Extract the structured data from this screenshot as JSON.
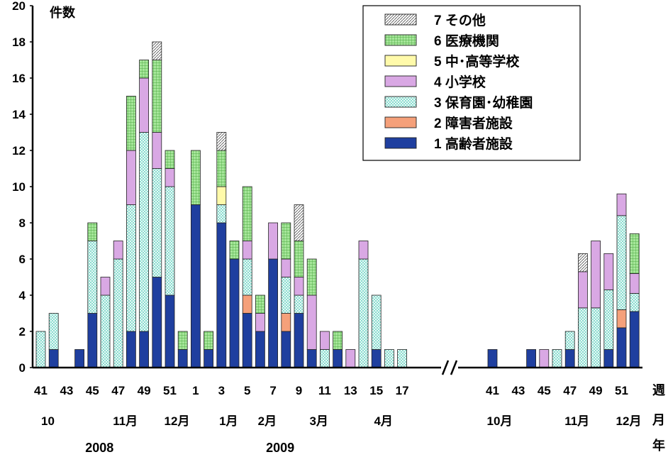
{
  "chart_data": {
    "type": "bar",
    "stacked": true,
    "ylabel": "件数",
    "ylim": [
      0,
      20
    ],
    "yticks": [
      0,
      2,
      4,
      6,
      8,
      10,
      12,
      14,
      16,
      18,
      20
    ],
    "x_unit_label": "週",
    "month_unit_label": "月",
    "year_unit_label": "年",
    "axis_break": true,
    "legend_position": "top-right",
    "grid": false,
    "series": [
      {
        "key": "s1",
        "name": "1 高齢者施設",
        "color": "#1f3f9f",
        "pattern": "solid"
      },
      {
        "key": "s2",
        "name": "2 障害者施設",
        "color": "#f5a07a",
        "pattern": "solid"
      },
      {
        "key": "s3",
        "name": "3 保育園･幼稚園",
        "color": "#72d6c6",
        "pattern": "crosshatch"
      },
      {
        "key": "s4",
        "name": "4 小学校",
        "color": "#d9a8e4",
        "pattern": "solid"
      },
      {
        "key": "s5",
        "name": "5 中･高等学校",
        "color": "#fffaaa",
        "pattern": "solid"
      },
      {
        "key": "s6",
        "name": "6 医療機関",
        "color": "#a6e69a",
        "pattern": "grid"
      },
      {
        "key": "s7",
        "name": "7 その他",
        "color": "#ffffff",
        "pattern": "diagonal"
      }
    ],
    "weeks": [
      {
        "label": "41",
        "period": 1,
        "values": {
          "s3": 2
        }
      },
      {
        "label": "",
        "period": 1,
        "values": {
          "s1": 1,
          "s3": 2
        }
      },
      {
        "label": "43",
        "period": 1,
        "values": {}
      },
      {
        "label": "",
        "period": 1,
        "values": {
          "s1": 1
        }
      },
      {
        "label": "45",
        "period": 1,
        "values": {
          "s1": 3,
          "s3": 4,
          "s6": 1
        }
      },
      {
        "label": "",
        "period": 1,
        "values": {
          "s3": 4,
          "s4": 1
        }
      },
      {
        "label": "47",
        "period": 1,
        "values": {
          "s3": 6,
          "s4": 1
        }
      },
      {
        "label": "",
        "period": 1,
        "values": {
          "s1": 2,
          "s3": 7,
          "s4": 3,
          "s6": 3
        }
      },
      {
        "label": "49",
        "period": 1,
        "values": {
          "s1": 2,
          "s3": 11,
          "s4": 3,
          "s6": 1
        }
      },
      {
        "label": "",
        "period": 1,
        "values": {
          "s1": 5,
          "s3": 6,
          "s4": 2,
          "s6": 4,
          "s7": 1
        }
      },
      {
        "label": "51",
        "period": 1,
        "values": {
          "s1": 4,
          "s3": 6,
          "s4": 1,
          "s6": 1
        }
      },
      {
        "label": "",
        "period": 1,
        "values": {
          "s1": 1,
          "s6": 1
        }
      },
      {
        "label": "1",
        "period": 1,
        "values": {
          "s1": 9,
          "s6": 3
        }
      },
      {
        "label": "",
        "period": 1,
        "values": {
          "s1": 1,
          "s6": 1
        }
      },
      {
        "label": "3",
        "period": 1,
        "values": {
          "s1": 8,
          "s3": 1,
          "s5": 1,
          "s6": 2,
          "s7": 1
        }
      },
      {
        "label": "",
        "period": 1,
        "values": {
          "s1": 6,
          "s6": 1
        }
      },
      {
        "label": "5",
        "period": 1,
        "values": {
          "s1": 3,
          "s2": 1,
          "s3": 2,
          "s4": 1,
          "s6": 3
        }
      },
      {
        "label": "",
        "period": 1,
        "values": {
          "s1": 2,
          "s4": 1,
          "s6": 1
        }
      },
      {
        "label": "7",
        "period": 1,
        "values": {
          "s1": 6,
          "s4": 2
        }
      },
      {
        "label": "",
        "period": 1,
        "values": {
          "s1": 2,
          "s2": 1,
          "s3": 2,
          "s4": 1,
          "s6": 2
        }
      },
      {
        "label": "9",
        "period": 1,
        "values": {
          "s1": 3,
          "s3": 1,
          "s4": 1,
          "s6": 2,
          "s7": 2
        }
      },
      {
        "label": "",
        "period": 1,
        "values": {
          "s1": 1,
          "s4": 3,
          "s6": 2
        }
      },
      {
        "label": "11",
        "period": 1,
        "values": {
          "s3": 1,
          "s4": 1
        }
      },
      {
        "label": "",
        "period": 1,
        "values": {
          "s1": 1,
          "s6": 1
        }
      },
      {
        "label": "13",
        "period": 1,
        "values": {
          "s4": 1
        }
      },
      {
        "label": "",
        "period": 1,
        "values": {
          "s3": 6,
          "s4": 1
        }
      },
      {
        "label": "15",
        "period": 1,
        "values": {
          "s1": 1,
          "s3": 3
        }
      },
      {
        "label": "",
        "period": 1,
        "values": {
          "s3": 1
        }
      },
      {
        "label": "17",
        "period": 1,
        "values": {
          "s3": 1
        }
      },
      {
        "label": "41",
        "period": 2,
        "values": {
          "s1": 1
        }
      },
      {
        "label": "",
        "period": 2,
        "values": {}
      },
      {
        "label": "43",
        "period": 2,
        "values": {}
      },
      {
        "label": "",
        "period": 2,
        "values": {
          "s1": 1
        }
      },
      {
        "label": "45",
        "period": 2,
        "values": {
          "s4": 1
        }
      },
      {
        "label": "",
        "period": 2,
        "values": {
          "s3": 1
        }
      },
      {
        "label": "47",
        "period": 2,
        "values": {
          "s1": 1,
          "s3": 1
        }
      },
      {
        "label": "",
        "period": 2,
        "values": {
          "s3": 3.3,
          "s4": 2,
          "s7": 1
        }
      },
      {
        "label": "49",
        "period": 2,
        "values": {
          "s3": 3.3,
          "s4": 3.7
        }
      },
      {
        "label": "",
        "period": 2,
        "values": {
          "s1": 1,
          "s3": 3.3,
          "s4": 2
        }
      },
      {
        "label": "51",
        "period": 2,
        "values": {
          "s1": 2.2,
          "s2": 1,
          "s3": 5.2,
          "s4": 1.2
        }
      },
      {
        "label": "",
        "period": 2,
        "values": {
          "s1": 3.1,
          "s3": 1,
          "s4": 1.1,
          "s6": 2.2
        }
      }
    ],
    "months": [
      {
        "label": "10",
        "week_index": 0
      },
      {
        "label": "11月",
        "week_index": 6
      },
      {
        "label": "12月",
        "week_index": 10
      },
      {
        "label": "1月",
        "week_index": 14
      },
      {
        "label": "2月",
        "week_index": 17
      },
      {
        "label": "3月",
        "week_index": 21
      },
      {
        "label": "4月",
        "week_index": 26
      },
      {
        "label": "10月",
        "week_index": 29
      },
      {
        "label": "11月",
        "week_index": 35
      },
      {
        "label": "12月",
        "week_index": 39
      }
    ],
    "years": [
      {
        "label": "2008",
        "week_index": 4
      },
      {
        "label": "2009",
        "week_index": 18
      }
    ]
  }
}
